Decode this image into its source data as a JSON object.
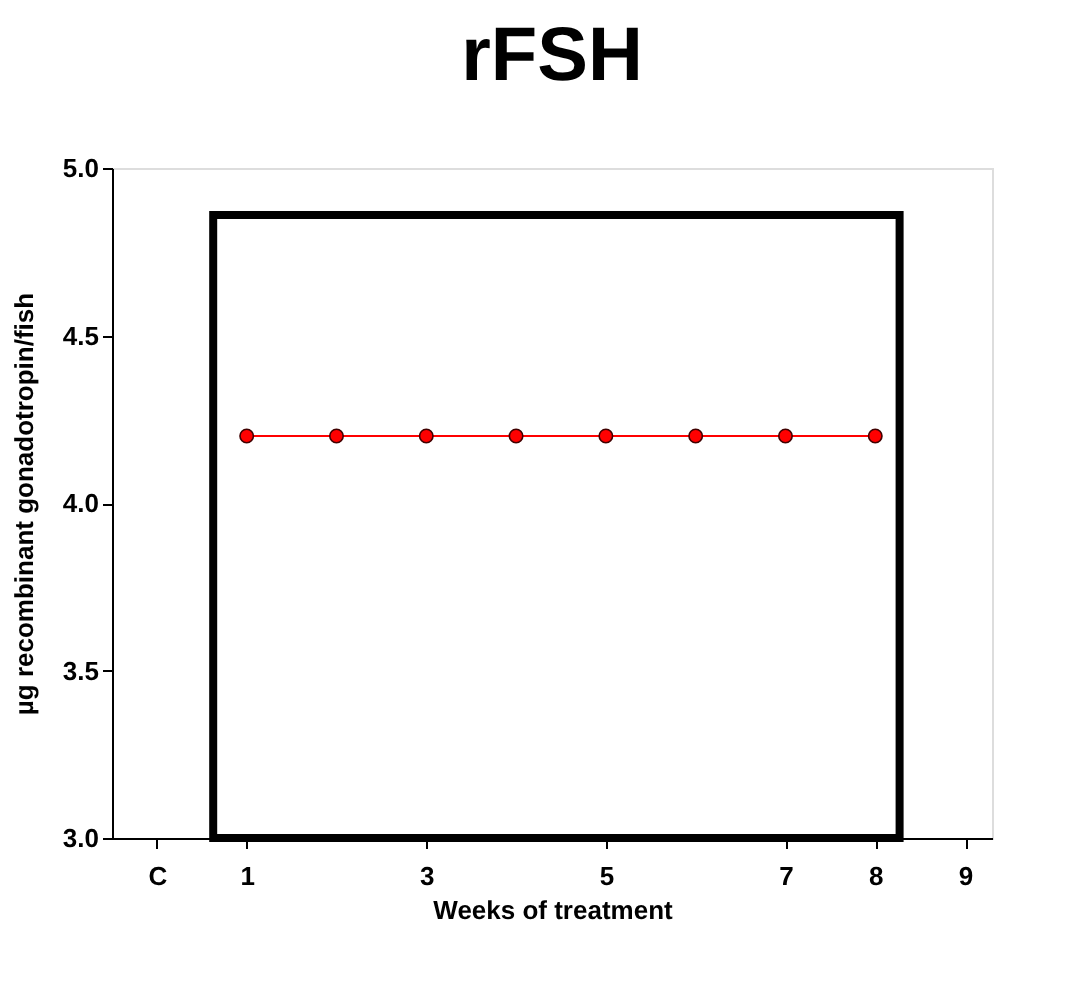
{
  "chart_data": {
    "type": "line",
    "title": "rFSH",
    "xlabel": "Weeks of treatment",
    "ylabel": "µg recombinant gonadotropin/fish",
    "x": [
      1,
      2,
      3,
      4,
      5,
      6,
      7,
      8
    ],
    "series": [
      {
        "color": "#ff0000",
        "values": [
          4.2,
          4.2,
          4.2,
          4.2,
          4.2,
          4.2,
          4.2,
          4.2
        ]
      }
    ],
    "xlim": [
      -0.5,
      9.3
    ],
    "xticks": [
      {
        "value": 0,
        "label": "C"
      },
      1,
      3,
      5,
      7,
      8,
      9
    ],
    "ylim": [
      3.0,
      5.0
    ],
    "yticks": [
      {
        "value": 3,
        "label": "3.0"
      },
      3.5,
      {
        "value": 4,
        "label": "4.0"
      },
      4.5,
      {
        "value": 5,
        "label": "5.0"
      }
    ],
    "marker": "circle",
    "line_style": "solid",
    "grid": false
  }
}
